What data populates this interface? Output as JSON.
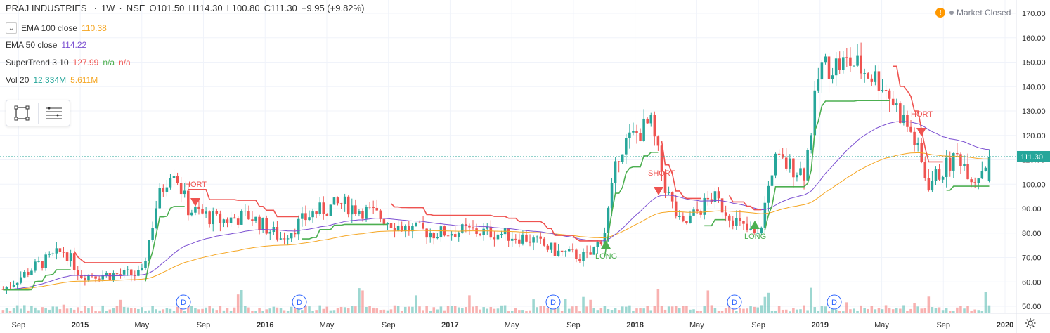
{
  "header": {
    "symbol": "PRAJ INDUSTRIES",
    "interval": "1W",
    "exchange": "NSE",
    "open": "O101.50",
    "high": "H114.30",
    "low": "L100.80",
    "close": "C111.30",
    "change": "+9.95 (+9.82%)"
  },
  "indicators": [
    {
      "name": "EMA 100 close",
      "v1": "110.38",
      "v2": "",
      "v3": "",
      "c1": "#f5a623"
    },
    {
      "name": "EMA 50 close",
      "v1": "114.22",
      "v2": "",
      "v3": "",
      "c1": "#7b4fd1"
    },
    {
      "name": "SuperTrend 3 10",
      "v1": "127.99",
      "v2": "n/a",
      "v3": "n/a",
      "c1": "#ef5350"
    },
    {
      "name": "Vol 20",
      "v1": "12.334M",
      "v2": "5.611M",
      "v3": "",
      "c1": "#26a69a"
    }
  ],
  "status": {
    "market": "Market Closed"
  },
  "price_axis": {
    "ticks": [
      "170.00",
      "160.00",
      "150.00",
      "140.00",
      "130.00",
      "120.00",
      "110.00",
      "100.00",
      "90.00",
      "80.00",
      "70.00",
      "60.00",
      "50.00"
    ],
    "last": "111.30"
  },
  "time_axis": {
    "labels": [
      "Sep",
      "2015",
      "May",
      "Sep",
      "2016",
      "May",
      "Sep",
      "2017",
      "May",
      "Sep",
      "2018",
      "May",
      "Sep",
      "2019",
      "May",
      "Sep",
      "2020"
    ]
  },
  "signals": {
    "long": "LONG",
    "short": "SHORT",
    "hort": "HORT",
    "dividend": "D"
  },
  "colors": {
    "up": "#26a69a",
    "down": "#ef5350",
    "ema100": "#f5a623",
    "ema50": "#7b4fd1",
    "supertrend_down": "#ef5350",
    "supertrend_up": "#4caf50",
    "bg": "#ffffff"
  },
  "icons": [
    "chevron-down-icon",
    "rectangle-icon",
    "list-icon",
    "warning-icon",
    "settings-icon"
  ],
  "chart_data": {
    "type": "candlestick",
    "ylim": [
      45,
      172
    ],
    "close_series": [
      {
        "x": "2014-08",
        "y": 57
      },
      {
        "x": "2014-10",
        "y": 66
      },
      {
        "x": "2014-12",
        "y": 73
      },
      {
        "x": "2015-01",
        "y": 63
      },
      {
        "x": "2015-03",
        "y": 63
      },
      {
        "x": "2015-05",
        "y": 63
      },
      {
        "x": "2015-06",
        "y": 93
      },
      {
        "x": "2015-07",
        "y": 108
      },
      {
        "x": "2015-08",
        "y": 90
      },
      {
        "x": "2015-10",
        "y": 85
      },
      {
        "x": "2015-12",
        "y": 87
      },
      {
        "x": "2016-02",
        "y": 78
      },
      {
        "x": "2016-04",
        "y": 88
      },
      {
        "x": "2016-06",
        "y": 92
      },
      {
        "x": "2016-08",
        "y": 88
      },
      {
        "x": "2016-10",
        "y": 82
      },
      {
        "x": "2016-12",
        "y": 80
      },
      {
        "x": "2017-02",
        "y": 81
      },
      {
        "x": "2017-04",
        "y": 80
      },
      {
        "x": "2017-06",
        "y": 78
      },
      {
        "x": "2017-08",
        "y": 72
      },
      {
        "x": "2017-10",
        "y": 70
      },
      {
        "x": "2017-11",
        "y": 80
      },
      {
        "x": "2017-12",
        "y": 115
      },
      {
        "x": "2018-02",
        "y": 125
      },
      {
        "x": "2018-03",
        "y": 98
      },
      {
        "x": "2018-04",
        "y": 82
      },
      {
        "x": "2018-06",
        "y": 95
      },
      {
        "x": "2018-08",
        "y": 82
      },
      {
        "x": "2018-09",
        "y": 78
      },
      {
        "x": "2018-10",
        "y": 110
      },
      {
        "x": "2018-12",
        "y": 105
      },
      {
        "x": "2019-01",
        "y": 148
      },
      {
        "x": "2019-03",
        "y": 150
      },
      {
        "x": "2019-05",
        "y": 142
      },
      {
        "x": "2019-07",
        "y": 120
      },
      {
        "x": "2019-08",
        "y": 100
      },
      {
        "x": "2019-10",
        "y": 112
      },
      {
        "x": "2019-11",
        "y": 102
      },
      {
        "x": "2019-12",
        "y": 111.3
      }
    ],
    "ema100_last": 110.38,
    "ema50_last": 114.22,
    "supertrend_last": 127.99,
    "volume_last": "12.334M",
    "volume_ma": "5.611M"
  }
}
